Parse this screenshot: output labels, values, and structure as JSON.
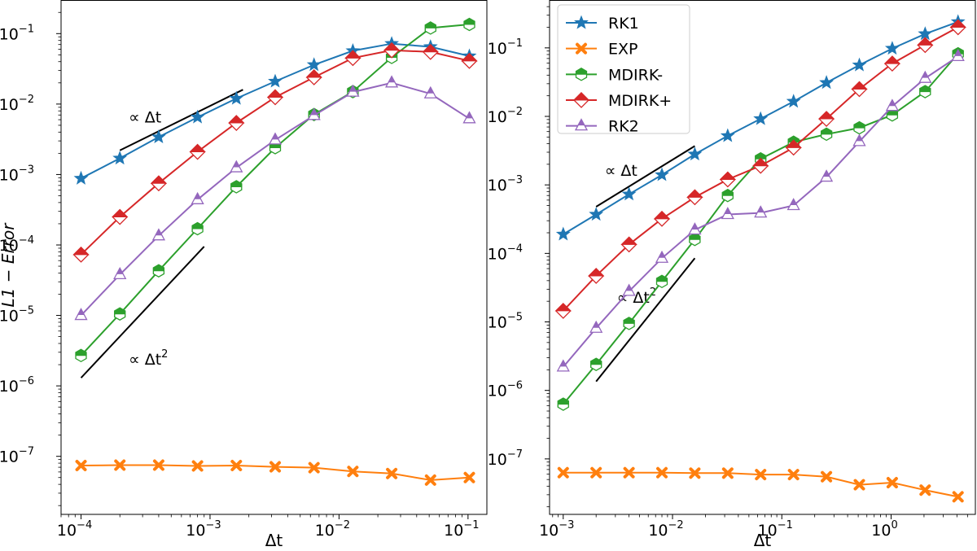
{
  "chart_data": [
    {
      "type": "line",
      "scale": "log-log",
      "xlabel": "Δt",
      "ylabel": "L1 − Error",
      "ylabel_parts": {
        "main": "L1",
        "sep": " − ",
        "italic": "Error"
      },
      "xlim": [
        7e-05,
        0.14
      ],
      "ylim": [
        1.5e-08,
        0.3
      ],
      "xticks": [
        {
          "value": 0.0001,
          "base": "10",
          "exp": "−4"
        },
        {
          "value": 0.001,
          "base": "10",
          "exp": "−3"
        },
        {
          "value": 0.01,
          "base": "10",
          "exp": "−2"
        },
        {
          "value": 0.1,
          "base": "10",
          "exp": "−1"
        }
      ],
      "yticks": [
        {
          "value": 1e-07,
          "base": "10",
          "exp": "−7"
        },
        {
          "value": 1e-06,
          "base": "10",
          "exp": "−6"
        },
        {
          "value": 1e-05,
          "base": "10",
          "exp": "−5"
        },
        {
          "value": 0.0001,
          "base": "10",
          "exp": "−4"
        },
        {
          "value": 0.001,
          "base": "10",
          "exp": "−3"
        },
        {
          "value": 0.01,
          "base": "10",
          "exp": "−2"
        },
        {
          "value": 0.1,
          "base": "10",
          "exp": "−1"
        }
      ],
      "x": [
        0.0001,
        0.0002,
        0.0004,
        0.0008,
        0.0016,
        0.0032,
        0.0064,
        0.0128,
        0.0256,
        0.0512,
        0.1024
      ],
      "series": [
        {
          "name": "RK1",
          "color": "#1f77b4",
          "marker": "star",
          "values": [
            0.00088,
            0.0017,
            0.0034,
            0.0065,
            0.012,
            0.021,
            0.036,
            0.057,
            0.072,
            0.065,
            0.048
          ]
        },
        {
          "name": "EXP",
          "color": "#ff7f0e",
          "marker": "x",
          "values": [
            7.4e-08,
            7.5e-08,
            7.5e-08,
            7.3e-08,
            7.4e-08,
            7.1e-08,
            6.9e-08,
            6.1e-08,
            5.7e-08,
            4.6e-08,
            5e-08
          ]
        },
        {
          "name": "MDIRK-",
          "color": "#2ca02c",
          "marker": "hexagon",
          "values": [
            2.7e-06,
            1.05e-05,
            4.3e-05,
            0.00017,
            0.00067,
            0.0024,
            0.0071,
            0.015,
            0.046,
            0.12,
            0.135
          ]
        },
        {
          "name": "MDIRK+",
          "color": "#d62728",
          "marker": "diamond",
          "values": [
            7.3e-05,
            0.00025,
            0.00075,
            0.0021,
            0.0054,
            0.0125,
            0.024,
            0.045,
            0.058,
            0.055,
            0.041
          ]
        },
        {
          "name": "RK2",
          "color": "#9467bd",
          "marker": "triangle",
          "values": [
            1e-05,
            3.8e-05,
            0.000135,
            0.00044,
            0.00125,
            0.0031,
            0.0069,
            0.0148,
            0.02,
            0.014,
            0.0062
          ]
        }
      ],
      "reference_lines": [
        {
          "label": "∝ Δt",
          "exponent": "",
          "x": [
            0.0002,
            0.0018
          ],
          "y": [
            0.0022,
            0.016
          ],
          "label_at": [
            0.00012,
            0.0055
          ]
        },
        {
          "label": "∝ Δt",
          "exponent": "2",
          "x": [
            0.0001,
            0.0009
          ],
          "y": [
            1.3e-06,
            9.5e-05
          ],
          "label_at": [
            0.00012,
            2e-06
          ]
        }
      ],
      "legend": null
    },
    {
      "type": "line",
      "scale": "log-log",
      "xlabel": "Δt",
      "ylabel": "",
      "xlim": [
        0.00075,
        5.9
      ],
      "ylim": [
        1.55e-08,
        0.5
      ],
      "xticks": [
        {
          "value": 0.001,
          "base": "10",
          "exp": "−3"
        },
        {
          "value": 0.01,
          "base": "10",
          "exp": "−2"
        },
        {
          "value": 0.1,
          "base": "10",
          "exp": "−1"
        },
        {
          "value": 1,
          "base": "10",
          "exp": "0"
        }
      ],
      "yticks": [
        {
          "value": 1e-07,
          "base": "10",
          "exp": "−7"
        },
        {
          "value": 1e-06,
          "base": "10",
          "exp": "−6"
        },
        {
          "value": 1e-05,
          "base": "10",
          "exp": "−5"
        },
        {
          "value": 0.0001,
          "base": "10",
          "exp": "−4"
        },
        {
          "value": 0.001,
          "base": "10",
          "exp": "−3"
        },
        {
          "value": 0.01,
          "base": "10",
          "exp": "−2"
        },
        {
          "value": 0.1,
          "base": "10",
          "exp": "−1"
        }
      ],
      "x": [
        0.001,
        0.002,
        0.004,
        0.008,
        0.016,
        0.032,
        0.064,
        0.128,
        0.256,
        0.512,
        1.024,
        2.048,
        4.096
      ],
      "series": [
        {
          "name": "RK1",
          "color": "#1f77b4",
          "marker": "star",
          "values": [
            0.00019,
            0.00037,
            0.00073,
            0.0014,
            0.0028,
            0.0052,
            0.0092,
            0.0165,
            0.031,
            0.056,
            0.098,
            0.16,
            0.24
          ]
        },
        {
          "name": "EXP",
          "color": "#ff7f0e",
          "marker": "x",
          "values": [
            6.3e-08,
            6.3e-08,
            6.3e-08,
            6.3e-08,
            6.2e-08,
            6.2e-08,
            5.9e-08,
            5.9e-08,
            5.5e-08,
            4.2e-08,
            4.5e-08,
            3.5e-08,
            2.8e-08
          ]
        },
        {
          "name": "MDIRK-",
          "color": "#2ca02c",
          "marker": "hexagon",
          "values": [
            6.3e-07,
            2.4e-06,
            9.5e-06,
            3.9e-05,
            0.00016,
            0.0007,
            0.0024,
            0.0042,
            0.0055,
            0.0068,
            0.0105,
            0.023,
            0.082
          ]
        },
        {
          "name": "MDIRK+",
          "color": "#d62728",
          "marker": "diamond",
          "values": [
            1.45e-05,
            4.7e-05,
            0.000135,
            0.00032,
            0.00066,
            0.0012,
            0.0019,
            0.0035,
            0.0092,
            0.025,
            0.059,
            0.11,
            0.2
          ]
        },
        {
          "name": "RK2",
          "color": "#9467bd",
          "marker": "triangle",
          "values": [
            2.2e-06,
            8.1e-06,
            2.8e-05,
            8.5e-05,
            0.00022,
            0.00037,
            0.00039,
            0.0005,
            0.0013,
            0.0043,
            0.014,
            0.036,
            0.075
          ]
        }
      ],
      "reference_lines": [
        {
          "label": "∝ Δt",
          "exponent": "",
          "x": [
            0.002,
            0.016
          ],
          "y": [
            0.00048,
            0.0037
          ],
          "label_at": [
            0.0024,
            0.00135
          ]
        },
        {
          "label": "∝ Δt",
          "exponent": "2",
          "x": [
            0.002,
            0.016
          ],
          "y": [
            1.35e-06,
            8.5e-05
          ],
          "label_at": [
            0.0031,
            1.9e-05
          ]
        }
      ],
      "legend": {
        "location": "top-left",
        "entries": [
          "RK1",
          "EXP",
          "MDIRK-",
          "MDIRK+",
          "RK2"
        ]
      }
    }
  ]
}
